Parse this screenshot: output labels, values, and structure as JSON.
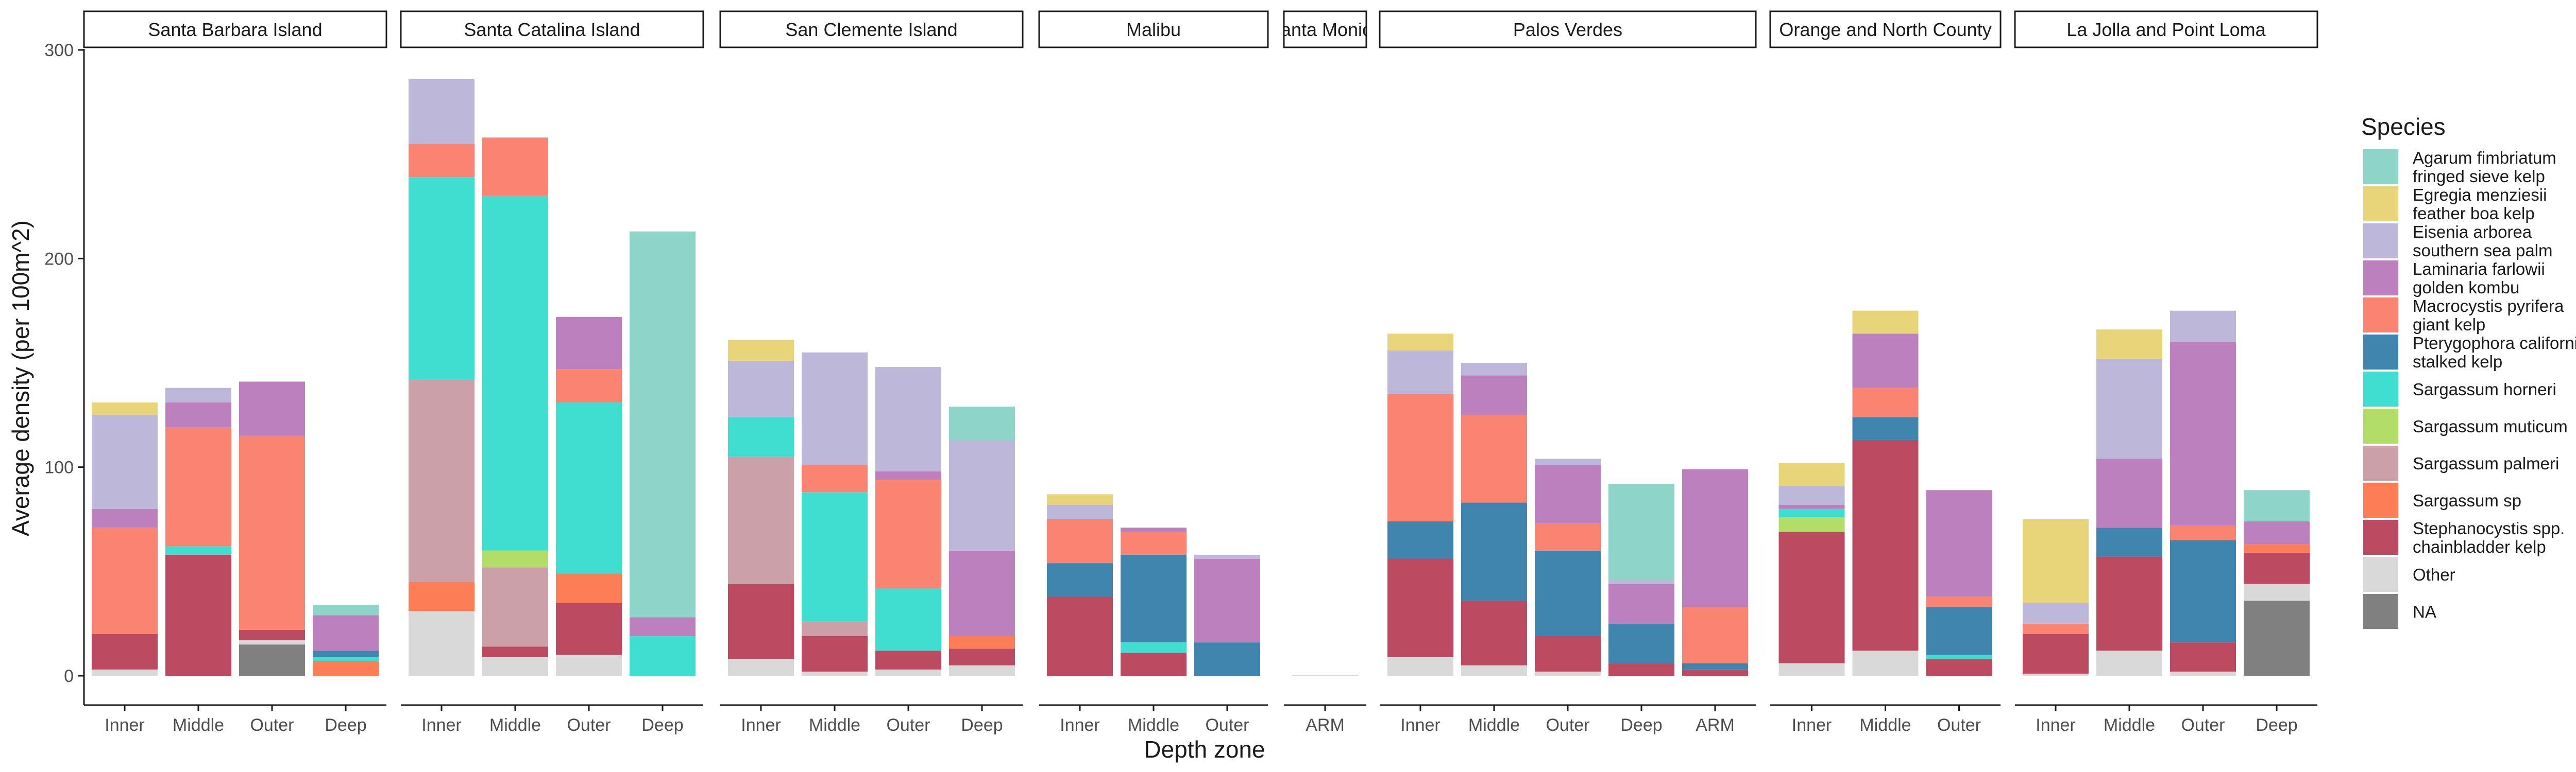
{
  "chart_data": {
    "type": "bar",
    "stacked": true,
    "faceted": true,
    "xlabel": "Depth zone",
    "ylabel": "Average density (per 100m^2)",
    "ylim": [
      0,
      300
    ],
    "yticks": [
      0,
      100,
      200,
      300
    ],
    "grid": false,
    "legend": {
      "title": "Species",
      "position": "right",
      "entries": [
        {
          "key": "agarum",
          "lines": [
            "Agarum fimbriatum",
            "fringed sieve kelp"
          ],
          "color": "#8fd4c8"
        },
        {
          "key": "egregia",
          "lines": [
            "Egregia menziesii",
            "feather boa kelp"
          ],
          "color": "#e8d57a"
        },
        {
          "key": "eisenia",
          "lines": [
            "Eisenia arborea",
            "southern sea palm"
          ],
          "color": "#bdb8d9"
        },
        {
          "key": "laminaria",
          "lines": [
            "Laminaria farlowii",
            "golden kombu"
          ],
          "color": "#bb80bd"
        },
        {
          "key": "macrocystis",
          "lines": [
            "Macrocystis pyrifera",
            "giant kelp"
          ],
          "color": "#fb8372"
        },
        {
          "key": "pterygophora",
          "lines": [
            "Pterygophora californica",
            "stalked kelp"
          ],
          "color": "#3f85ad"
        },
        {
          "key": "sarg_horneri",
          "lines": [
            "Sargassum horneri"
          ],
          "color": "#40ddd1"
        },
        {
          "key": "sarg_muticum",
          "lines": [
            "Sargassum muticum"
          ],
          "color": "#b3dd69"
        },
        {
          "key": "sarg_palmeri",
          "lines": [
            "Sargassum palmeri"
          ],
          "color": "#cca0a8"
        },
        {
          "key": "sarg_sp",
          "lines": [
            "Sargassum sp"
          ],
          "color": "#fd7d56"
        },
        {
          "key": "stephanocystis",
          "lines": [
            "Stephanocystis spp.",
            "chainbladder kelp"
          ],
          "color": "#bc4a60"
        },
        {
          "key": "other",
          "lines": [
            "Other"
          ],
          "color": "#d9d9d9"
        },
        {
          "key": "na",
          "lines": [
            "NA"
          ],
          "color": "#808080"
        }
      ]
    },
    "facets": [
      {
        "name": "Santa Barbara Island",
        "bars": [
          {
            "zone": "Inner",
            "stack": {
              "other": 3,
              "stephanocystis": 17,
              "macrocystis": 51,
              "laminaria": 9,
              "eisenia": 45,
              "egregia": 6
            }
          },
          {
            "zone": "Middle",
            "stack": {
              "stephanocystis": 58,
              "sarg_horneri": 4,
              "macrocystis": 57,
              "laminaria": 12,
              "eisenia": 7
            }
          },
          {
            "zone": "Outer",
            "stack": {
              "na": 15,
              "other": 2,
              "stephanocystis": 5,
              "macrocystis": 93,
              "laminaria": 26
            }
          },
          {
            "zone": "Deep",
            "stack": {
              "pterygophora": 3,
              "sarg_horneri": 2,
              "sarg_sp": 7,
              "laminaria": 17,
              "agarum": 5
            }
          }
        ]
      },
      {
        "name": "Santa Catalina Island",
        "bars": [
          {
            "zone": "Inner",
            "stack": {
              "other": 31,
              "sarg_sp": 14,
              "sarg_palmeri": 97,
              "sarg_horneri": 97,
              "macrocystis": 16,
              "eisenia": 31
            }
          },
          {
            "zone": "Middle",
            "stack": {
              "other": 9,
              "stephanocystis": 5,
              "sarg_palmeri": 38,
              "sarg_muticum": 8,
              "sarg_horneri": 170,
              "macrocystis": 28
            }
          },
          {
            "zone": "Outer",
            "stack": {
              "other": 10,
              "stephanocystis": 25,
              "sarg_sp": 14,
              "sarg_horneri": 82,
              "macrocystis": 16,
              "laminaria": 25
            }
          },
          {
            "zone": "Deep",
            "stack": {
              "sarg_horneri": 19,
              "laminaria": 9,
              "agarum": 185
            }
          }
        ]
      },
      {
        "name": "San Clemente Island",
        "bars": [
          {
            "zone": "Inner",
            "stack": {
              "other": 8,
              "stephanocystis": 36,
              "sarg_palmeri": 61,
              "sarg_horneri": 19,
              "eisenia": 27,
              "egregia": 10
            }
          },
          {
            "zone": "Middle",
            "stack": {
              "other": 2,
              "stephanocystis": 17,
              "sarg_palmeri": 7,
              "sarg_horneri": 62,
              "macrocystis": 13,
              "eisenia": 54
            }
          },
          {
            "zone": "Outer",
            "stack": {
              "other": 3,
              "stephanocystis": 9,
              "sarg_horneri": 30,
              "macrocystis": 52,
              "laminaria": 4,
              "eisenia": 50
            }
          },
          {
            "zone": "Deep",
            "stack": {
              "other": 5,
              "stephanocystis": 8,
              "sarg_sp": 6,
              "laminaria": 41,
              "eisenia": 53,
              "agarum": 16
            }
          }
        ]
      },
      {
        "name": "Malibu",
        "bars": [
          {
            "zone": "Inner",
            "stack": {
              "stephanocystis": 38,
              "pterygophora": 16,
              "macrocystis": 21,
              "eisenia": 7,
              "egregia": 5
            }
          },
          {
            "zone": "Middle",
            "stack": {
              "stephanocystis": 11,
              "sarg_horneri": 5,
              "pterygophora": 42,
              "macrocystis": 11,
              "laminaria": 2
            }
          },
          {
            "zone": "Outer",
            "stack": {
              "pterygophora": 16,
              "laminaria": 40,
              "eisenia": 2
            }
          }
        ]
      },
      {
        "name": "Santa Monica",
        "bars": [
          {
            "zone": "ARM",
            "stack": {
              "other": 0.5
            }
          }
        ]
      },
      {
        "name": "Palos Verdes",
        "bars": [
          {
            "zone": "Inner",
            "stack": {
              "other": 9,
              "stephanocystis": 47,
              "pterygophora": 18,
              "macrocystis": 61,
              "eisenia": 21,
              "egregia": 8
            }
          },
          {
            "zone": "Middle",
            "stack": {
              "other": 5,
              "stephanocystis": 31,
              "pterygophora": 47,
              "macrocystis": 42,
              "laminaria": 19,
              "eisenia": 6
            }
          },
          {
            "zone": "Outer",
            "stack": {
              "other": 2,
              "stephanocystis": 17,
              "pterygophora": 41,
              "macrocystis": 13,
              "laminaria": 28,
              "eisenia": 3
            }
          },
          {
            "zone": "Deep",
            "stack": {
              "stephanocystis": 6,
              "pterygophora": 19,
              "laminaria": 19,
              "eisenia": 2,
              "agarum": 46
            }
          },
          {
            "zone": "ARM",
            "stack": {
              "stephanocystis": 3,
              "pterygophora": 3,
              "macrocystis": 27,
              "laminaria": 66
            }
          }
        ]
      },
      {
        "name": "Orange and North County",
        "bars": [
          {
            "zone": "Inner",
            "stack": {
              "other": 6,
              "stephanocystis": 63,
              "sarg_muticum": 7,
              "sarg_horneri": 4,
              "laminaria": 2,
              "eisenia": 9,
              "egregia": 11
            }
          },
          {
            "zone": "Middle",
            "stack": {
              "other": 12,
              "stephanocystis": 101,
              "pterygophora": 11,
              "macrocystis": 14,
              "laminaria": 26,
              "egregia": 11
            }
          },
          {
            "zone": "Outer",
            "stack": {
              "stephanocystis": 8,
              "sarg_horneri": 2,
              "pterygophora": 23,
              "macrocystis": 5,
              "laminaria": 51
            }
          }
        ]
      },
      {
        "name": "La Jolla and Point Loma",
        "bars": [
          {
            "zone": "Inner",
            "stack": {
              "other": 1,
              "stephanocystis": 19,
              "macrocystis": 5,
              "eisenia": 10,
              "egregia": 40
            }
          },
          {
            "zone": "Middle",
            "stack": {
              "other": 12,
              "stephanocystis": 45,
              "pterygophora": 14,
              "laminaria": 33,
              "eisenia": 48,
              "egregia": 14
            }
          },
          {
            "zone": "Outer",
            "stack": {
              "other": 2,
              "stephanocystis": 14,
              "pterygophora": 49,
              "macrocystis": 7,
              "laminaria": 88,
              "eisenia": 15
            }
          },
          {
            "zone": "Deep",
            "stack": {
              "na": 36,
              "other": 8,
              "stephanocystis": 15,
              "sarg_sp": 4,
              "laminaria": 11,
              "agarum": 15
            }
          }
        ]
      }
    ]
  }
}
